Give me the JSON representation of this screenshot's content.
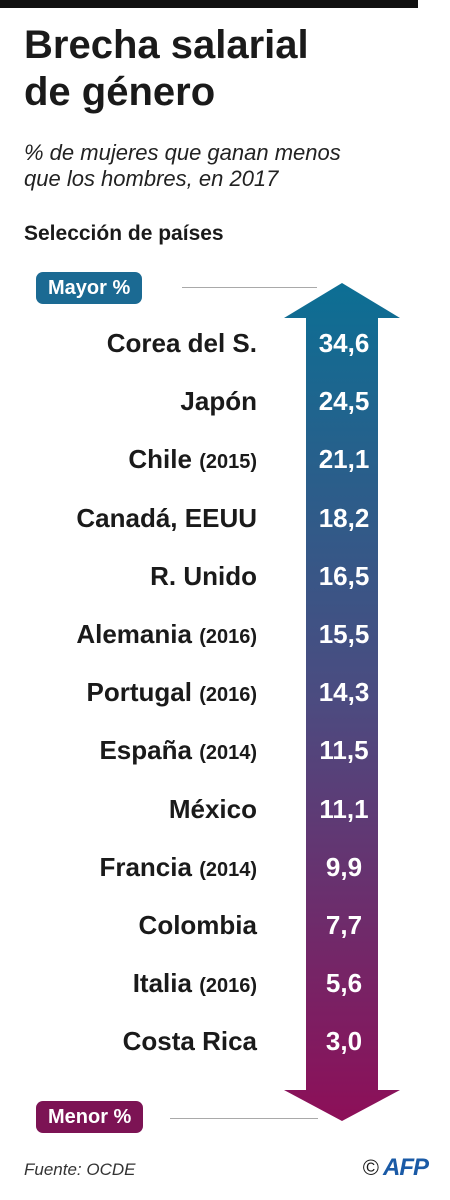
{
  "header": {
    "title_line1": "Brecha salarial",
    "title_line2": "de género",
    "subtitle_line1": "% de mujeres que ganan menos",
    "subtitle_line2": "que los hombres, en 2017",
    "selection": "Selección de países"
  },
  "scale": {
    "top_label": "Mayor %",
    "bottom_label": "Menor %"
  },
  "colors": {
    "top": "#0c6f94",
    "mid": "#4c4b80",
    "bottom": "#8d0f58",
    "top_badge": "#1b6a93",
    "bottom_badge": "#7c1354"
  },
  "chart_data": {
    "type": "table",
    "title": "Brecha salarial de género",
    "subtitle": "% de mujeres que ganan menos que los hombres, en 2017",
    "rows": [
      {
        "country": "Corea del S.",
        "year_note": "",
        "value": "34,6"
      },
      {
        "country": "Japón",
        "year_note": "",
        "value": "24,5"
      },
      {
        "country": "Chile",
        "year_note": "(2015)",
        "value": "21,1"
      },
      {
        "country": "Canadá, EEUU",
        "year_note": "",
        "value": "18,2"
      },
      {
        "country": "R. Unido",
        "year_note": "",
        "value": "16,5"
      },
      {
        "country": "Alemania",
        "year_note": "(2016)",
        "value": "15,5"
      },
      {
        "country": "Portugal",
        "year_note": "(2016)",
        "value": "14,3"
      },
      {
        "country": "España",
        "year_note": "(2014)",
        "value": "11,5"
      },
      {
        "country": "México",
        "year_note": "",
        "value": "11,1"
      },
      {
        "country": "Francia",
        "year_note": "(2014)",
        "value": "9,9"
      },
      {
        "country": "Colombia",
        "year_note": "",
        "value": "7,7"
      },
      {
        "country": "Italia",
        "year_note": "(2016)",
        "value": "5,6"
      },
      {
        "country": "Costa Rica",
        "year_note": "",
        "value": "3,0"
      }
    ]
  },
  "footer": {
    "source": "Fuente: OCDE",
    "copyright": "©",
    "agency": "AFP"
  }
}
